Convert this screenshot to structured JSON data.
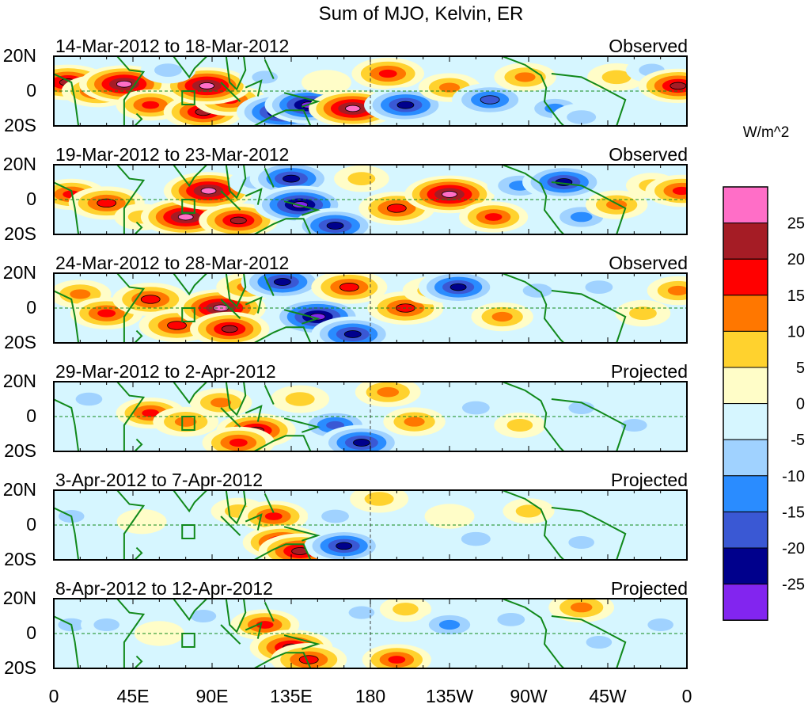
{
  "chart_data": {
    "type": "heatmap",
    "title": "Sum of MJO, Kelvin, ER",
    "units_label": "W/m^2",
    "x_ticks": [
      "0",
      "45E",
      "90E",
      "135E",
      "180",
      "135W",
      "90W",
      "45W",
      "0"
    ],
    "y_ticks": [
      "20N",
      "0",
      "20S"
    ],
    "xlim": [
      0,
      360
    ],
    "ylim": [
      -20,
      20
    ],
    "colorbar": {
      "labels": [
        "25",
        "20",
        "15",
        "10",
        "5",
        "0",
        "-5",
        "-10",
        "-15",
        "-20",
        "-25"
      ],
      "colors": [
        "#ff6ec7",
        "#a51c25",
        "#ff0000",
        "#ff7700",
        "#ffd22e",
        "#fffdc8",
        "#d6f6ff",
        "#a0d2ff",
        "#2a8cff",
        "#3a58d4",
        "#00008c",
        "#8225ef"
      ]
    },
    "panels": [
      {
        "date_label": "14-Mar-2012 to 18-Mar-2012",
        "status": "Observed",
        "features": [
          {
            "lon": 8,
            "lat": 5,
            "v": 24
          },
          {
            "lon": 25,
            "lat": 0,
            "v": 18
          },
          {
            "lon": 40,
            "lat": 4,
            "v": 28
          },
          {
            "lon": 55,
            "lat": -8,
            "v": 16
          },
          {
            "lon": 85,
            "lat": -12,
            "v": 22
          },
          {
            "lon": 100,
            "lat": -5,
            "v": 18
          },
          {
            "lon": 87,
            "lat": 3,
            "v": 27
          },
          {
            "lon": 65,
            "lat": 12,
            "v": -8
          },
          {
            "lon": 120,
            "lat": 8,
            "v": -6
          },
          {
            "lon": 130,
            "lat": -12,
            "v": -29
          },
          {
            "lon": 145,
            "lat": -8,
            "v": -27
          },
          {
            "lon": 170,
            "lat": -10,
            "v": 27
          },
          {
            "lon": 155,
            "lat": 5,
            "v": 5
          },
          {
            "lon": 190,
            "lat": 10,
            "v": 18
          },
          {
            "lon": 200,
            "lat": -8,
            "v": -24
          },
          {
            "lon": 225,
            "lat": 2,
            "v": 12
          },
          {
            "lon": 248,
            "lat": -5,
            "v": -20
          },
          {
            "lon": 268,
            "lat": 8,
            "v": 12
          },
          {
            "lon": 285,
            "lat": -10,
            "v": -12
          },
          {
            "lon": 300,
            "lat": -15,
            "v": -10
          },
          {
            "lon": 320,
            "lat": 8,
            "v": 10
          },
          {
            "lon": 340,
            "lat": 12,
            "v": -6
          },
          {
            "lon": 355,
            "lat": 3,
            "v": 22
          }
        ]
      },
      {
        "date_label": "19-Mar-2012 to 23-Mar-2012",
        "status": "Observed",
        "features": [
          {
            "lon": 10,
            "lat": 3,
            "v": 16
          },
          {
            "lon": 30,
            "lat": -2,
            "v": 20
          },
          {
            "lon": 50,
            "lat": -10,
            "v": 8
          },
          {
            "lon": 75,
            "lat": -10,
            "v": 28
          },
          {
            "lon": 88,
            "lat": 5,
            "v": 28
          },
          {
            "lon": 105,
            "lat": -12,
            "v": 22
          },
          {
            "lon": 115,
            "lat": 10,
            "v": -8
          },
          {
            "lon": 135,
            "lat": 12,
            "v": -24
          },
          {
            "lon": 140,
            "lat": -3,
            "v": -29
          },
          {
            "lon": 160,
            "lat": -15,
            "v": -24
          },
          {
            "lon": 175,
            "lat": 12,
            "v": 8
          },
          {
            "lon": 195,
            "lat": -5,
            "v": 20
          },
          {
            "lon": 225,
            "lat": 3,
            "v": 28
          },
          {
            "lon": 250,
            "lat": -10,
            "v": 16
          },
          {
            "lon": 265,
            "lat": 8,
            "v": -14
          },
          {
            "lon": 290,
            "lat": 10,
            "v": -24
          },
          {
            "lon": 300,
            "lat": -10,
            "v": -14
          },
          {
            "lon": 320,
            "lat": -3,
            "v": 12
          },
          {
            "lon": 340,
            "lat": 8,
            "v": 6
          },
          {
            "lon": 357,
            "lat": 5,
            "v": 18
          }
        ]
      },
      {
        "date_label": "24-Mar-2012 to 28-Mar-2012",
        "status": "Observed",
        "features": [
          {
            "lon": 15,
            "lat": 8,
            "v": 12
          },
          {
            "lon": 30,
            "lat": -3,
            "v": 18
          },
          {
            "lon": 55,
            "lat": 5,
            "v": 20
          },
          {
            "lon": 70,
            "lat": -10,
            "v": 20
          },
          {
            "lon": 95,
            "lat": 0,
            "v": 28
          },
          {
            "lon": 100,
            "lat": -12,
            "v": 22
          },
          {
            "lon": 110,
            "lat": 12,
            "v": 12
          },
          {
            "lon": 130,
            "lat": 15,
            "v": -24
          },
          {
            "lon": 150,
            "lat": -5,
            "v": -29
          },
          {
            "lon": 170,
            "lat": -15,
            "v": -24
          },
          {
            "lon": 168,
            "lat": 12,
            "v": 20
          },
          {
            "lon": 200,
            "lat": 0,
            "v": 20
          },
          {
            "lon": 215,
            "lat": 10,
            "v": 10
          },
          {
            "lon": 230,
            "lat": 12,
            "v": -22
          },
          {
            "lon": 255,
            "lat": -5,
            "v": 12
          },
          {
            "lon": 275,
            "lat": 10,
            "v": -10
          },
          {
            "lon": 310,
            "lat": 12,
            "v": -8
          },
          {
            "lon": 335,
            "lat": -3,
            "v": 8
          },
          {
            "lon": 355,
            "lat": 10,
            "v": 12
          }
        ]
      },
      {
        "date_label": "29-Mar-2012 to 2-Apr-2012",
        "status": "Projected",
        "features": [
          {
            "lon": 20,
            "lat": 10,
            "v": -7
          },
          {
            "lon": 55,
            "lat": 2,
            "v": 16
          },
          {
            "lon": 75,
            "lat": -3,
            "v": 14
          },
          {
            "lon": 95,
            "lat": 8,
            "v": 12
          },
          {
            "lon": 115,
            "lat": -8,
            "v": 22
          },
          {
            "lon": 105,
            "lat": -15,
            "v": 18
          },
          {
            "lon": 140,
            "lat": 10,
            "v": 10
          },
          {
            "lon": 160,
            "lat": -5,
            "v": -18
          },
          {
            "lon": 175,
            "lat": -15,
            "v": -24
          },
          {
            "lon": 190,
            "lat": 14,
            "v": 14
          },
          {
            "lon": 205,
            "lat": -3,
            "v": 12
          },
          {
            "lon": 240,
            "lat": 5,
            "v": -8
          },
          {
            "lon": 265,
            "lat": -5,
            "v": 6
          },
          {
            "lon": 300,
            "lat": 5,
            "v": -6
          },
          {
            "lon": 330,
            "lat": -5,
            "v": -6
          }
        ]
      },
      {
        "date_label": "3-Apr-2012 to 7-Apr-2012",
        "status": "Projected",
        "features": [
          {
            "lon": 10,
            "lat": 5,
            "v": -6
          },
          {
            "lon": 50,
            "lat": 2,
            "v": 5
          },
          {
            "lon": 70,
            "lat": 12,
            "v": -5
          },
          {
            "lon": 105,
            "lat": 8,
            "v": 8
          },
          {
            "lon": 125,
            "lat": 5,
            "v": 16
          },
          {
            "lon": 130,
            "lat": -10,
            "v": 22
          },
          {
            "lon": 140,
            "lat": -15,
            "v": 24
          },
          {
            "lon": 165,
            "lat": -12,
            "v": -22
          },
          {
            "lon": 185,
            "lat": 15,
            "v": 10
          },
          {
            "lon": 160,
            "lat": 5,
            "v": -8
          },
          {
            "lon": 225,
            "lat": 5,
            "v": 5
          },
          {
            "lon": 240,
            "lat": -8,
            "v": -10
          },
          {
            "lon": 270,
            "lat": 8,
            "v": 6
          },
          {
            "lon": 300,
            "lat": -10,
            "v": -6
          },
          {
            "lon": 335,
            "lat": 10,
            "v": -5
          }
        ]
      },
      {
        "date_label": "8-Apr-2012 to 12-Apr-2012",
        "status": "Projected",
        "features": [
          {
            "lon": 10,
            "lat": 5,
            "v": -7
          },
          {
            "lon": 30,
            "lat": 5,
            "v": -6
          },
          {
            "lon": 60,
            "lat": 0,
            "v": 5
          },
          {
            "lon": 85,
            "lat": 10,
            "v": -6
          },
          {
            "lon": 120,
            "lat": 5,
            "v": 16
          },
          {
            "lon": 135,
            "lat": -8,
            "v": 24
          },
          {
            "lon": 145,
            "lat": -15,
            "v": 20
          },
          {
            "lon": 175,
            "lat": 12,
            "v": -6
          },
          {
            "lon": 195,
            "lat": -15,
            "v": 16
          },
          {
            "lon": 200,
            "lat": 14,
            "v": 6
          },
          {
            "lon": 225,
            "lat": 5,
            "v": -12
          },
          {
            "lon": 260,
            "lat": 8,
            "v": -8
          },
          {
            "lon": 300,
            "lat": 15,
            "v": 14
          },
          {
            "lon": 310,
            "lat": -5,
            "v": -6
          },
          {
            "lon": 345,
            "lat": 5,
            "v": -6
          }
        ]
      }
    ]
  }
}
